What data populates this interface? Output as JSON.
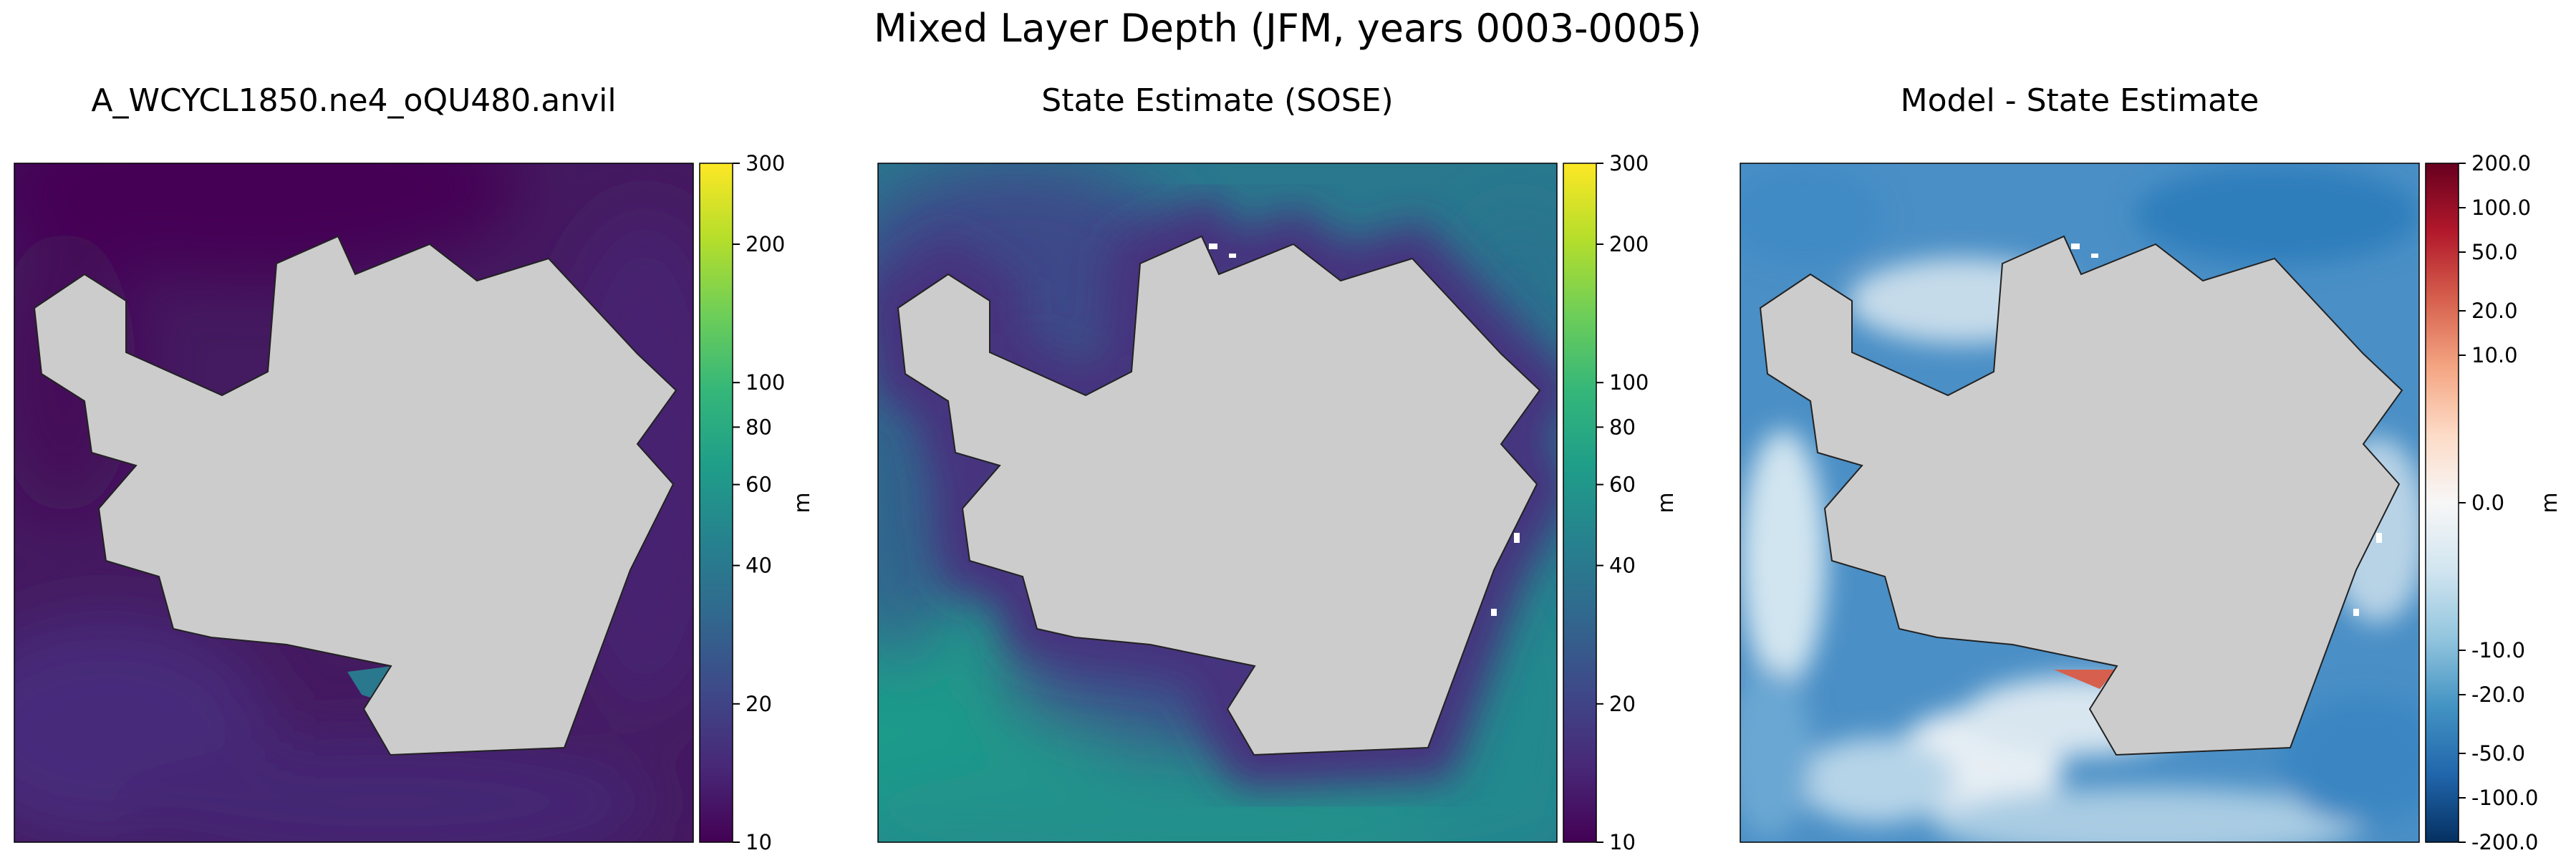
{
  "figure": {
    "title": "Mixed Layer Depth (JFM, years 0003-0005)"
  },
  "colors": {
    "land": "#cccccc",
    "viridis": [
      "#440154",
      "#482878",
      "#3e4989",
      "#31688e",
      "#26828e",
      "#1f9e89",
      "#35b779",
      "#6ece58",
      "#b5de2b",
      "#fde725"
    ],
    "rdbu_r": [
      "#053061",
      "#2166ac",
      "#4393c3",
      "#92c5de",
      "#d1e5f0",
      "#f7f7f7",
      "#fddbc7",
      "#f4a582",
      "#d6604d",
      "#b2182b",
      "#67001f"
    ]
  },
  "chart_data": [
    {
      "type": "heatmap",
      "title": "A_WCYCL1850.ne4_oQU480.anvil",
      "field": "model mixed layer depth",
      "colormap": "viridis",
      "colorbar_scale": "log",
      "colorbar_label": "m",
      "colorbar_range": [
        10,
        300
      ],
      "colorbar_ticks": [
        "10",
        "20",
        "40",
        "60",
        "80",
        "100",
        "200",
        "300"
      ],
      "colorbar_tick_values": [
        10,
        20,
        40,
        60,
        80,
        100,
        200,
        300
      ],
      "typical_value": 12
    },
    {
      "type": "heatmap",
      "title": "State Estimate (SOSE)",
      "field": "observed mixed layer depth",
      "colormap": "viridis",
      "colorbar_scale": "log",
      "colorbar_label": "m",
      "colorbar_range": [
        10,
        300
      ],
      "colorbar_ticks": [
        "10",
        "20",
        "40",
        "60",
        "80",
        "100",
        "200",
        "300"
      ],
      "colorbar_tick_values": [
        10,
        20,
        40,
        60,
        80,
        100,
        200,
        300
      ],
      "typical_value": 40
    },
    {
      "type": "heatmap",
      "title": "Model - State Estimate",
      "field": "difference",
      "colormap": "RdBu_r",
      "colorbar_scale": "symlog",
      "colorbar_label": "m",
      "colorbar_range": [
        -200,
        200
      ],
      "colorbar_ticks": [
        "200.0",
        "100.0",
        "50.0",
        "20.0",
        "10.0",
        "0.0",
        "-10.0",
        "-20.0",
        "-50.0",
        "-100.0",
        "-200.0"
      ],
      "colorbar_tick_values": [
        200,
        100,
        50,
        20,
        10,
        0,
        -10,
        -20,
        -50,
        -100,
        -200
      ],
      "typical_value": -30
    }
  ]
}
